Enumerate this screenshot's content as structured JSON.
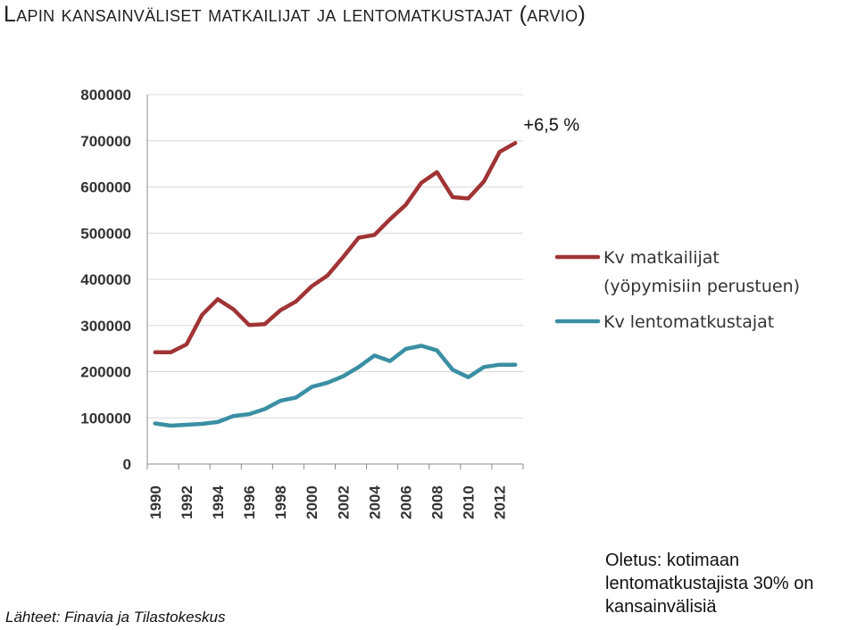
{
  "page": {
    "title": "Lapin kansainväliset matkailijat ja lentomatkustajat (arvio)",
    "source": "Lähteet: Finavia ja Tilastokeskus",
    "note": "Oletus: kotimaan lentomatkustajista 30% on kansainvälisiä"
  },
  "chart_data": {
    "type": "line",
    "title": "",
    "xlabel": "",
    "ylabel": "",
    "ylim": [
      0,
      800000
    ],
    "yticks": [
      0,
      100000,
      200000,
      300000,
      400000,
      500000,
      600000,
      700000,
      800000
    ],
    "ytick_labels": [
      "0",
      "100000",
      "200000",
      "300000",
      "400000",
      "500000",
      "600000",
      "700000",
      "800000"
    ],
    "xtick_labels": [
      "1990",
      "1992",
      "1994",
      "1996",
      "1998",
      "2000",
      "2002",
      "2004",
      "2006",
      "2008",
      "2010",
      "2012"
    ],
    "x": [
      1990,
      1991,
      1992,
      1993,
      1994,
      1995,
      1996,
      1997,
      1998,
      1999,
      2000,
      2001,
      2002,
      2003,
      2004,
      2005,
      2006,
      2007,
      2008,
      2009,
      2010,
      2011,
      2012,
      2013
    ],
    "grid": true,
    "legend_position": "right",
    "series": [
      {
        "name": "Kv matkailijat (yöpymisiin perustuen)",
        "legend_line1": "Kv matkailijat",
        "legend_line2": "(yöpymisiin perustuen)",
        "color": "#a03434",
        "values": [
          242000,
          242000,
          259000,
          323000,
          357000,
          335000,
          301000,
          303000,
          333000,
          352000,
          385000,
          408000,
          448000,
          490000,
          496000,
          530000,
          561000,
          609000,
          632000,
          578000,
          575000,
          612000,
          676000,
          695000
        ]
      },
      {
        "name": "Kv lentomatkustajat",
        "color": "#3a8fa3",
        "values": [
          88000,
          83000,
          85000,
          87000,
          91000,
          104000,
          108000,
          119000,
          137000,
          144000,
          167000,
          176000,
          190000,
          210000,
          235000,
          223000,
          249000,
          256000,
          246000,
          204000,
          188000,
          210000,
          215000,
          215000
        ]
      }
    ],
    "annotations": [
      {
        "text": "+6,5 %",
        "x": 2013,
        "y": 695000
      }
    ]
  }
}
